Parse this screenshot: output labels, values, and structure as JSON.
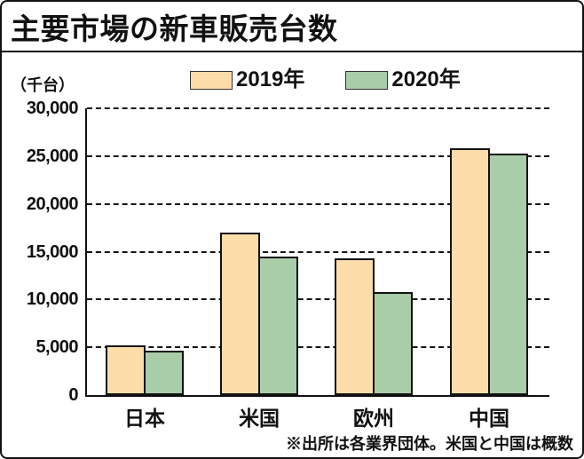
{
  "header": {
    "title": "主要市場の新車販売台数"
  },
  "colors": {
    "series_2019": "#FCDDAA",
    "series_2020": "#A9CCA9",
    "axis": "#111111",
    "background": "#FFFFFF"
  },
  "chart_data": {
    "type": "bar",
    "title": "主要市場の新車販売台数",
    "unit_label": "（千台）",
    "categories": [
      "日本",
      "米国",
      "欧州",
      "中国"
    ],
    "series": [
      {
        "name": "2019年",
        "color": "#FCDDAA",
        "values": [
          5200,
          17000,
          14300,
          25800
        ]
      },
      {
        "name": "2020年",
        "color": "#A9CCA9",
        "values": [
          4600,
          14500,
          10800,
          25300
        ]
      }
    ],
    "xlabel": "",
    "ylabel": "（千台）",
    "ylim": [
      0,
      30000
    ],
    "yticks": [
      0,
      5000,
      10000,
      15000,
      20000,
      25000,
      30000
    ],
    "ytick_labels": [
      "0",
      "5,000",
      "10,000",
      "15,000",
      "20,000",
      "25,000",
      "30,000"
    ],
    "grid": "horizontal-dashed",
    "legend_position": "top",
    "footnote": "※出所は各業界団体。米国と中国は概数"
  }
}
